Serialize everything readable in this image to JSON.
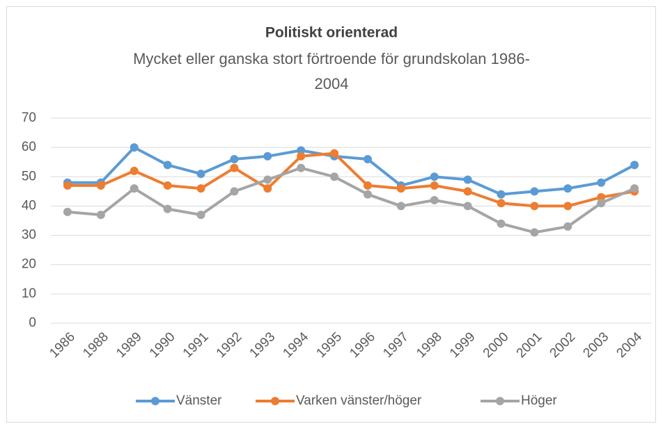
{
  "chart_data": {
    "type": "line",
    "title": "Politiskt orienterad",
    "subtitle": [
      "Mycket eller ganska stort förtroende för grundskolan 1986-",
      "2004"
    ],
    "categories": [
      "1986",
      "1988",
      "1989",
      "1990",
      "1991",
      "1992",
      "1993",
      "1994",
      "1995",
      "1996",
      "1997",
      "1998",
      "1999",
      "2000",
      "2001",
      "2002",
      "2003",
      "2004"
    ],
    "series": [
      {
        "name": "Vänster",
        "color": "#5b9bd5",
        "values": [
          48,
          48,
          60,
          54,
          51,
          56,
          57,
          59,
          57,
          56,
          47,
          50,
          49,
          44,
          45,
          46,
          48,
          54
        ]
      },
      {
        "name": "Varken vänster/höger",
        "color": "#ed7d31",
        "values": [
          47,
          47,
          52,
          47,
          46,
          53,
          46,
          57,
          58,
          47,
          46,
          47,
          45,
          41,
          40,
          40,
          43,
          45
        ]
      },
      {
        "name": "Höger",
        "color": "#a5a5a5",
        "values": [
          38,
          37,
          46,
          39,
          37,
          45,
          49,
          53,
          50,
          44,
          40,
          42,
          40,
          34,
          31,
          33,
          41,
          46
        ]
      }
    ],
    "ylim": [
      0,
      70
    ],
    "yticks": [
      0,
      10,
      20,
      30,
      40,
      50,
      60,
      70
    ],
    "grid": true,
    "legend": "bottom"
  }
}
